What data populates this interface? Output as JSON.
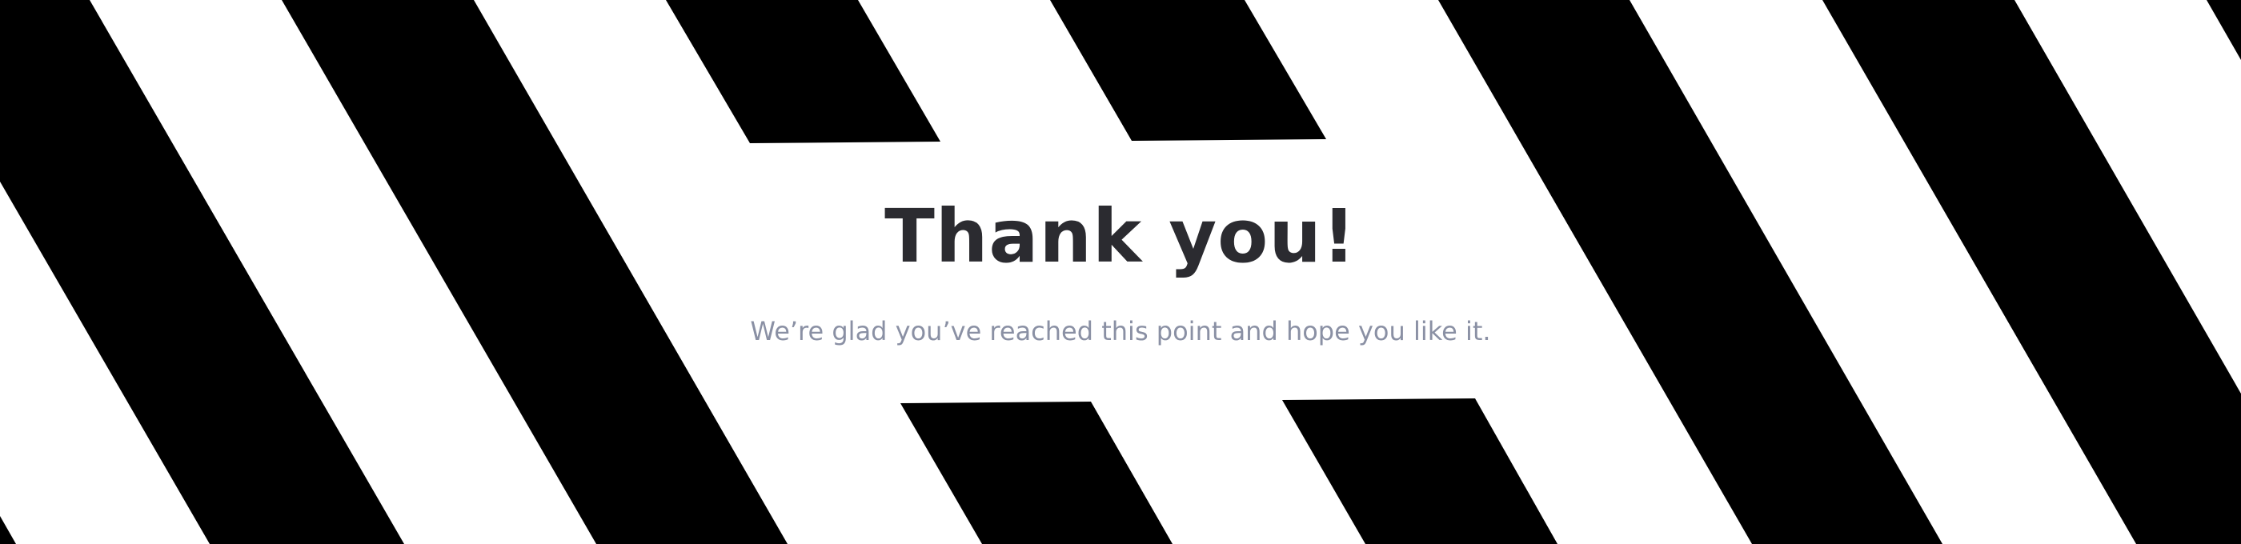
{
  "hero": {
    "title": "Thank you!",
    "subtitle": "We’re glad you’ve reached this point and hope you like it."
  },
  "colors": {
    "background": "#ffffff",
    "stripes": "#000000",
    "title": "#2b2b30",
    "subtitle": "#8a90a4"
  }
}
